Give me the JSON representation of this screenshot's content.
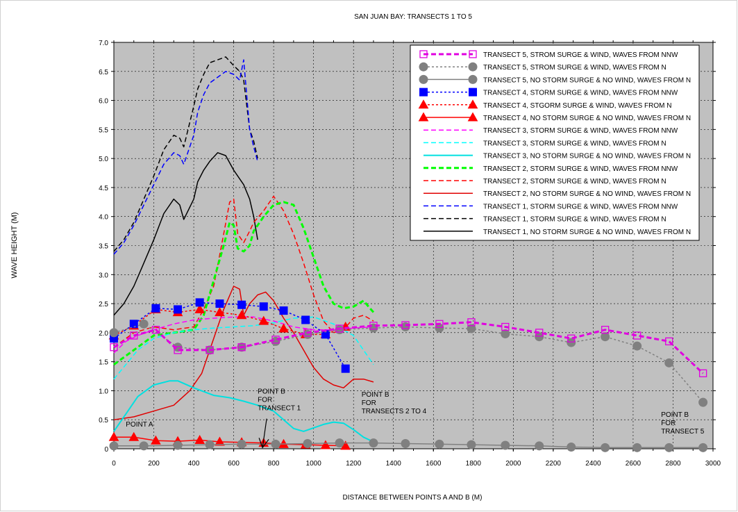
{
  "chart_data": {
    "type": "line",
    "title": "SAN JUAN BAY: TRANSECTS 1 TO  5",
    "xlabel": "DISTANCE BETWEEN POINTS A AND B (M)",
    "ylabel": "WAVE HEIGHT (M)",
    "xlim": [
      0,
      3000
    ],
    "ylim": [
      0,
      7
    ],
    "xticks": [
      "0",
      "200",
      "400",
      "600",
      "800",
      "1000",
      "1200",
      "1400",
      "1600",
      "1800",
      "2000",
      "2200",
      "2400",
      "2600",
      "2800",
      "3000"
    ],
    "yticks": [
      "0",
      "0.5",
      "1.0",
      "1.5",
      "2.0",
      "2.5",
      "3.0",
      "3.5",
      "4.0",
      "4.5",
      "5.0",
      "5.5",
      "6.0",
      "6.5",
      "7.0"
    ],
    "plot_background": "#c0c0c0",
    "grid": true,
    "legend_position": "top-right",
    "annotations": [
      {
        "id": "point-a",
        "lines": [
          "POINT A"
        ],
        "x": 60,
        "y": 0.38
      },
      {
        "id": "point-b-t1",
        "lines": [
          "POINT B",
          "FOR",
          "TRANSECT 1"
        ],
        "x": 720,
        "y": 0.95,
        "arrow_to": [
          720,
          0.02
        ]
      },
      {
        "id": "point-b-t2-4",
        "lines": [
          "POINT B",
          "FOR",
          "TRANSECTS 2 TO 4"
        ],
        "x": 1240,
        "y": 0.9
      },
      {
        "id": "point-b-t5",
        "lines": [
          "POINT B",
          "FOR",
          "TRANSECT 5"
        ],
        "x": 2740,
        "y": 0.55
      }
    ],
    "series": [
      {
        "name": "TRANSECT 5, STROM SURGE & WIND, WAVES FROM NNW",
        "color": "#e000e0",
        "dash": "dashed",
        "width": 3,
        "marker": "open-square",
        "x": [
          0,
          100,
          210,
          320,
          480,
          640,
          810,
          970,
          1130,
          1300,
          1460,
          1630,
          1790,
          1960,
          2130,
          2290,
          2460,
          2620,
          2780,
          2950
        ],
        "y": [
          1.75,
          1.95,
          2.05,
          1.7,
          1.7,
          1.75,
          1.88,
          2.0,
          2.07,
          2.12,
          2.13,
          2.15,
          2.18,
          2.1,
          2.0,
          1.9,
          2.05,
          1.95,
          1.85,
          1.3
        ]
      },
      {
        "name": "TRANSECT 5, STROM SURGE & WIND, WAVES FROM N",
        "color": "#808080",
        "dash": "dotted",
        "width": 1.5,
        "marker": "circle",
        "x": [
          0,
          150,
          320,
          480,
          640,
          810,
          970,
          1130,
          1300,
          1460,
          1630,
          1790,
          1960,
          2130,
          2290,
          2460,
          2620,
          2780,
          2950
        ],
        "y": [
          2.0,
          2.15,
          1.75,
          1.7,
          1.75,
          1.85,
          1.97,
          2.05,
          2.08,
          2.1,
          2.08,
          2.07,
          1.98,
          1.93,
          1.83,
          1.93,
          1.77,
          1.48,
          0.8
        ]
      },
      {
        "name": "TRANSECT 5, NO STORM SURGE & NO WIND, WAVES FROM N",
        "color": "#808080",
        "dash": "solid",
        "width": 1.5,
        "marker": "circle",
        "x": [
          0,
          150,
          320,
          480,
          640,
          810,
          970,
          1130,
          1300,
          1460,
          1630,
          1790,
          1960,
          2130,
          2290,
          2460,
          2620,
          2780,
          2950
        ],
        "y": [
          0.05,
          0.05,
          0.06,
          0.07,
          0.08,
          0.08,
          0.09,
          0.1,
          0.1,
          0.09,
          0.08,
          0.07,
          0.06,
          0.05,
          0.03,
          0.02,
          0.02,
          0.02,
          0.02
        ]
      },
      {
        "name": "TRANSECT 4, STORM SURGE & WIND, WAVES FROM NNW",
        "color": "#0000ff",
        "dash": "dotted",
        "width": 1.5,
        "marker": "filled-square",
        "x": [
          0,
          100,
          210,
          320,
          430,
          530,
          640,
          750,
          850,
          960,
          1060,
          1160
        ],
        "y": [
          1.9,
          2.15,
          2.42,
          2.4,
          2.52,
          2.5,
          2.48,
          2.45,
          2.38,
          2.22,
          1.97,
          1.38
        ]
      },
      {
        "name": "TRANSECT 4, STGORM SURGE & WIND, WAVES FROM N",
        "color": "#ff0000",
        "dash": "dotted",
        "width": 1.5,
        "marker": "filled-triangle",
        "x": [
          0,
          100,
          210,
          320,
          430,
          530,
          640,
          750,
          850,
          960,
          1060,
          1160
        ],
        "y": [
          1.95,
          2.12,
          2.4,
          2.35,
          2.4,
          2.35,
          2.3,
          2.2,
          2.07,
          1.97,
          1.97,
          2.1
        ]
      },
      {
        "name": "TRANSECT 4, NO STORM SURGE & NO WIND, WAVES FROM N",
        "color": "#ff0000",
        "dash": "solid",
        "width": 1.5,
        "marker": "filled-triangle",
        "x": [
          0,
          100,
          210,
          320,
          430,
          530,
          640,
          750,
          850,
          960,
          1060,
          1160
        ],
        "y": [
          0.2,
          0.2,
          0.14,
          0.13,
          0.15,
          0.12,
          0.11,
          0.1,
          0.08,
          0.07,
          0.06,
          0.05
        ]
      },
      {
        "name": "TRANSECT 3, STORM SURGE & WIND, WAVES FROM NNW",
        "color": "#ff00ff",
        "dash": "dashed",
        "width": 1.5,
        "marker": "none",
        "x": [
          0,
          60,
          120,
          200,
          300,
          400,
          500,
          600,
          700,
          800,
          900,
          1000,
          1100,
          1200,
          1300
        ],
        "y": [
          1.65,
          1.85,
          1.95,
          2.05,
          2.15,
          2.22,
          2.25,
          2.27,
          2.27,
          2.2,
          2.1,
          2.05,
          2.05,
          2.08,
          2.1
        ]
      },
      {
        "name": "TRANSECT 3, STORM SURGE & WIND, WAVES FROM N",
        "color": "#00ffff",
        "dash": "dashed",
        "width": 1.5,
        "marker": "none",
        "x": [
          0,
          60,
          120,
          200,
          300,
          400,
          500,
          600,
          700,
          800,
          900,
          1000,
          1100,
          1200,
          1300
        ],
        "y": [
          1.2,
          1.45,
          1.7,
          1.9,
          2.0,
          2.05,
          2.08,
          2.1,
          2.12,
          2.17,
          2.25,
          2.27,
          2.15,
          1.95,
          1.45
        ]
      },
      {
        "name": "TRANSECT 3, NO STORM SURGE & NO WIND, WAVES FROM N",
        "color": "#00e0e0",
        "dash": "solid",
        "width": 2,
        "marker": "none",
        "x": [
          0,
          60,
          120,
          200,
          280,
          320,
          400,
          500,
          580,
          650,
          720,
          800,
          850,
          900,
          950,
          1000,
          1050,
          1100,
          1150,
          1200,
          1250,
          1300
        ],
        "y": [
          0.3,
          0.6,
          0.9,
          1.1,
          1.17,
          1.17,
          1.05,
          0.92,
          0.88,
          0.82,
          0.75,
          0.65,
          0.5,
          0.35,
          0.3,
          0.36,
          0.42,
          0.46,
          0.44,
          0.33,
          0.2,
          0.12
        ]
      },
      {
        "name": "TRANSECT 2, STORM SURGE & WIND, WAVES FROM NNW",
        "color": "#00ff00",
        "dash": "dashed",
        "width": 3,
        "marker": "none",
        "x": [
          0,
          100,
          200,
          300,
          400,
          450,
          500,
          550,
          580,
          600,
          620,
          650,
          680,
          700,
          750,
          800,
          850,
          900,
          950,
          1000,
          1050,
          1100,
          1150,
          1200,
          1250,
          1300
        ],
        "y": [
          1.45,
          1.7,
          1.95,
          2.0,
          2.05,
          2.3,
          2.9,
          3.5,
          3.9,
          3.85,
          3.45,
          3.4,
          3.5,
          3.75,
          4.0,
          4.2,
          4.25,
          4.2,
          3.8,
          3.3,
          2.8,
          2.5,
          2.42,
          2.45,
          2.55,
          2.35
        ]
      },
      {
        "name": "TRANSECT 2, STORM SURGE & WIND, WAVES FROM N",
        "color": "#ff0000",
        "dash": "dashed",
        "width": 1.5,
        "marker": "none",
        "x": [
          0,
          100,
          200,
          300,
          400,
          450,
          500,
          550,
          580,
          600,
          620,
          650,
          680,
          700,
          750,
          800,
          850,
          900,
          950,
          1000,
          1050,
          1100,
          1150,
          1200,
          1250,
          1300
        ],
        "y": [
          1.75,
          2.0,
          2.1,
          2.05,
          2.1,
          2.4,
          2.8,
          3.7,
          4.25,
          4.3,
          3.7,
          3.55,
          3.75,
          3.9,
          4.1,
          4.35,
          4.1,
          3.7,
          3.2,
          2.65,
          2.2,
          2.0,
          2.05,
          2.25,
          2.3,
          2.2
        ]
      },
      {
        "name": "TRANSECT 2, NO STORM SURGE & NO WIND, WAVES FROM N",
        "color": "#e00000",
        "dash": "solid",
        "width": 1.5,
        "marker": "none",
        "x": [
          0,
          100,
          200,
          300,
          380,
          440,
          500,
          550,
          600,
          630,
          650,
          680,
          720,
          760,
          800,
          850,
          900,
          950,
          1000,
          1050,
          1100,
          1150,
          1200,
          1250,
          1300
        ],
        "y": [
          0.5,
          0.55,
          0.65,
          0.75,
          1.0,
          1.3,
          1.9,
          2.4,
          2.8,
          2.75,
          2.3,
          2.5,
          2.65,
          2.7,
          2.55,
          2.25,
          2.0,
          1.7,
          1.4,
          1.2,
          1.1,
          1.05,
          1.2,
          1.2,
          1.15
        ]
      },
      {
        "name": "TRANSECT 1, STORM SURGE & WIND, WAVES FROM NNW",
        "color": "#0000ff",
        "dash": "dashed",
        "width": 1.5,
        "marker": "none",
        "x": [
          0,
          50,
          100,
          150,
          200,
          250,
          300,
          330,
          350,
          400,
          420,
          450,
          480,
          520,
          560,
          600,
          630,
          650,
          680,
          700,
          720
        ],
        "y": [
          3.35,
          3.55,
          3.85,
          4.2,
          4.55,
          4.9,
          5.1,
          5.05,
          4.9,
          5.4,
          5.8,
          6.1,
          6.3,
          6.4,
          6.5,
          6.45,
          6.35,
          6.7,
          5.5,
          5.2,
          4.95
        ]
      },
      {
        "name": "TRANSECT 1, STORM SURGE & WIND, WAVES FROM N",
        "color": "#000000",
        "dash": "dashed",
        "width": 1.5,
        "marker": "none",
        "x": [
          0,
          50,
          100,
          150,
          200,
          250,
          300,
          330,
          350,
          400,
          420,
          450,
          480,
          520,
          560,
          600,
          630,
          650,
          680,
          700,
          720
        ],
        "y": [
          3.4,
          3.6,
          3.9,
          4.3,
          4.7,
          5.15,
          5.4,
          5.35,
          5.2,
          5.9,
          6.2,
          6.45,
          6.65,
          6.7,
          6.75,
          6.6,
          6.5,
          6.35,
          5.5,
          5.3,
          5.0
        ]
      },
      {
        "name": "TRANSECT 1, NO STORM SURGE & NO WIND, WAVES FROM N",
        "color": "#000000",
        "dash": "solid",
        "width": 1.5,
        "marker": "none",
        "x": [
          0,
          50,
          100,
          150,
          200,
          250,
          300,
          330,
          350,
          400,
          420,
          450,
          480,
          520,
          560,
          600,
          630,
          650,
          680,
          700,
          720
        ],
        "y": [
          2.3,
          2.5,
          2.8,
          3.2,
          3.6,
          4.05,
          4.3,
          4.2,
          3.95,
          4.3,
          4.6,
          4.8,
          4.95,
          5.1,
          5.05,
          4.8,
          4.65,
          4.55,
          4.3,
          4.0,
          3.6
        ]
      }
    ]
  }
}
